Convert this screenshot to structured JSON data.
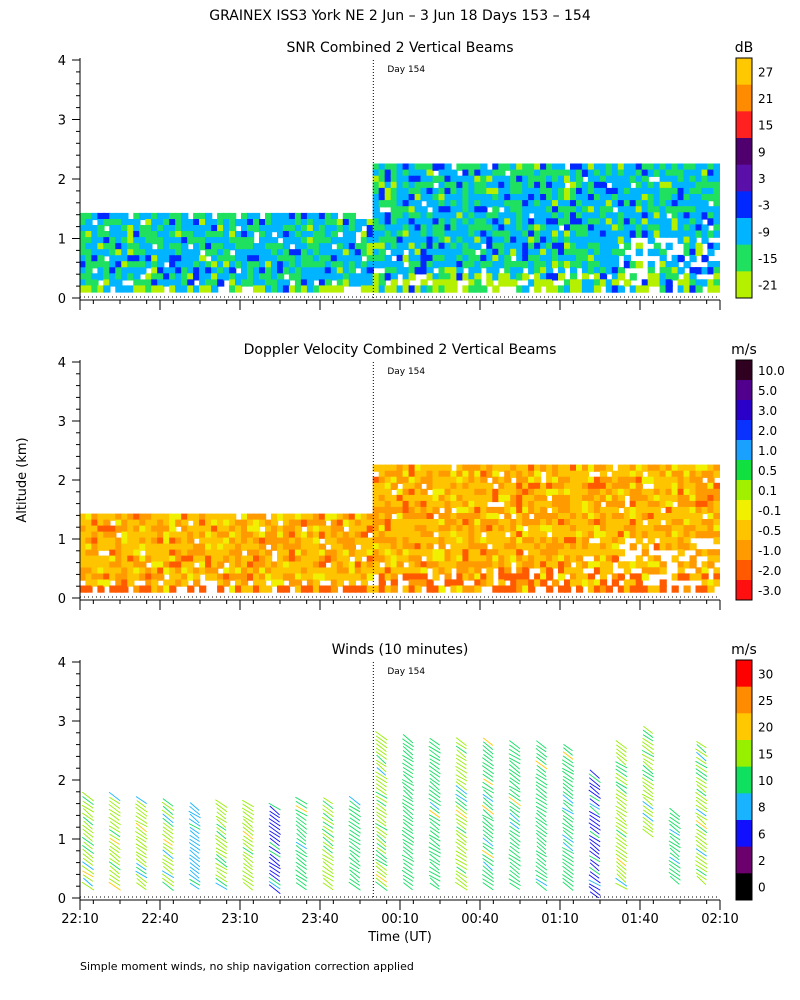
{
  "figure": {
    "title": "GRAINEX ISS3 York NE   2 Jun –  3 Jun 18 Days 153 – 154",
    "y_axis_label": "Altitude (km)",
    "x_axis_label": "Time (UT)",
    "footnote": "Simple moment winds, no ship navigation correction applied",
    "day_marker": "Day 154"
  },
  "chart_data": [
    {
      "type": "heatmap",
      "title": "SNR Combined 2 Vertical Beams",
      "xlabel": "Time (UT)",
      "ylabel": "Altitude (km)",
      "x_ticks": [
        "22:10",
        "22:40",
        "23:10",
        "23:40",
        "00:10",
        "00:40",
        "01:10",
        "01:40",
        "02:10"
      ],
      "y_ticks": [
        "0",
        "1",
        "2",
        "3",
        "4"
      ],
      "ylim": [
        0,
        4
      ],
      "day_boundary": "00:00",
      "colorbar": {
        "unit": "dB",
        "labels": [
          "27",
          "21",
          "15",
          "9",
          "3",
          "-3",
          "-9",
          "-15",
          "-21"
        ],
        "colors": [
          "#ffc800",
          "#ff8c00",
          "#ff2020",
          "#50006e",
          "#5a10a8",
          "#0028ff",
          "#00b4ff",
          "#20e060",
          "#b4f000"
        ]
      },
      "data_extent": [
        {
          "start": "22:10",
          "end": "00:00",
          "top_km": 1.42
        },
        {
          "start": "00:00",
          "end": "02:10",
          "top_km": 2.25
        }
      ],
      "dominant_classes": [
        "-9",
        "-15"
      ]
    },
    {
      "type": "heatmap",
      "title": "Doppler Velocity Combined 2 Vertical Beams",
      "xlabel": "Time (UT)",
      "ylabel": "Altitude (km)",
      "x_ticks": [
        "22:10",
        "22:40",
        "23:10",
        "23:40",
        "00:10",
        "00:40",
        "01:10",
        "01:40",
        "02:10"
      ],
      "y_ticks": [
        "0",
        "1",
        "2",
        "3",
        "4"
      ],
      "ylim": [
        0,
        4
      ],
      "day_boundary": "00:00",
      "colorbar": {
        "unit": "m/s",
        "labels": [
          "10.0",
          "5.0",
          "3.0",
          "2.0",
          "1.0",
          "0.5",
          "0.1",
          "-0.1",
          "-0.5",
          "-1.0",
          "-2.0",
          "-3.0"
        ],
        "colors": [
          "#300020",
          "#50008c",
          "#2a00c8",
          "#0a32ff",
          "#1aa0ff",
          "#10e040",
          "#a0f000",
          "#f0f000",
          "#ffc400",
          "#ff9a00",
          "#ff5a00",
          "#ff1010"
        ]
      },
      "data_extent": [
        {
          "start": "22:10",
          "end": "00:00",
          "top_km": 1.42
        },
        {
          "start": "00:00",
          "end": "02:10",
          "top_km": 2.25
        }
      ],
      "dominant_classes": [
        "-0.5",
        "-1.0"
      ]
    },
    {
      "type": "barbs",
      "title": "Winds (10 minutes)",
      "xlabel": "Time (UT)",
      "ylabel": "Altitude (km)",
      "x_ticks": [
        "22:10",
        "22:40",
        "23:10",
        "23:40",
        "00:10",
        "00:40",
        "01:10",
        "01:40",
        "02:10"
      ],
      "y_ticks": [
        "0",
        "1",
        "2",
        "3",
        "4"
      ],
      "ylim": [
        0,
        4
      ],
      "day_boundary": "00:00",
      "colorbar": {
        "unit": "m/s",
        "labels": [
          "30",
          "25",
          "20",
          "15",
          "10",
          "8",
          "6",
          "2",
          "0"
        ],
        "colors": [
          "#ff0000",
          "#ff8c00",
          "#ffc800",
          "#96f000",
          "#10e060",
          "#18b4ff",
          "#1010ff",
          "#6c006c",
          "#000000"
        ]
      },
      "profiles": [
        {
          "time": "22:13",
          "bottom_km": 0.2,
          "top_km": 1.72,
          "dominant_speed_class": "15"
        },
        {
          "time": "22:23",
          "bottom_km": 0.2,
          "top_km": 1.72,
          "dominant_speed_class": "15"
        },
        {
          "time": "22:33",
          "bottom_km": 0.2,
          "top_km": 1.66,
          "dominant_speed_class": "15"
        },
        {
          "time": "22:43",
          "bottom_km": 0.2,
          "top_km": 1.62,
          "dominant_speed_class": "15"
        },
        {
          "time": "22:53",
          "bottom_km": 0.2,
          "top_km": 1.55,
          "dominant_speed_class": "8"
        },
        {
          "time": "23:03",
          "bottom_km": 0.2,
          "top_km": 1.6,
          "dominant_speed_class": "15"
        },
        {
          "time": "23:13",
          "bottom_km": 0.2,
          "top_km": 1.6,
          "dominant_speed_class": "15"
        },
        {
          "time": "23:23",
          "bottom_km": 0.15,
          "top_km": 1.55,
          "dominant_speed_class": "6"
        },
        {
          "time": "23:33",
          "bottom_km": 0.2,
          "top_km": 1.65,
          "dominant_speed_class": "10"
        },
        {
          "time": "23:43",
          "bottom_km": 0.2,
          "top_km": 1.65,
          "dominant_speed_class": "15"
        },
        {
          "time": "23:53",
          "bottom_km": 0.2,
          "top_km": 1.65,
          "dominant_speed_class": "10"
        },
        {
          "time": "00:03",
          "bottom_km": 0.2,
          "top_km": 2.75,
          "dominant_speed_class": "15"
        },
        {
          "time": "00:13",
          "bottom_km": 0.2,
          "top_km": 2.7,
          "dominant_speed_class": "10"
        },
        {
          "time": "00:23",
          "bottom_km": 0.2,
          "top_km": 2.65,
          "dominant_speed_class": "10"
        },
        {
          "time": "00:33",
          "bottom_km": 0.2,
          "top_km": 2.65,
          "dominant_speed_class": "15"
        },
        {
          "time": "00:43",
          "bottom_km": 0.2,
          "top_km": 2.65,
          "dominant_speed_class": "10"
        },
        {
          "time": "00:53",
          "bottom_km": 0.2,
          "top_km": 2.6,
          "dominant_speed_class": "10"
        },
        {
          "time": "01:03",
          "bottom_km": 0.2,
          "top_km": 2.6,
          "dominant_speed_class": "10"
        },
        {
          "time": "01:13",
          "bottom_km": 0.2,
          "top_km": 2.55,
          "dominant_speed_class": "10"
        },
        {
          "time": "01:23",
          "bottom_km": 0.05,
          "top_km": 2.1,
          "dominant_speed_class": "6"
        },
        {
          "time": "01:33",
          "bottom_km": 0.2,
          "top_km": 2.6,
          "dominant_speed_class": "15"
        },
        {
          "time": "01:43",
          "bottom_km": 1.1,
          "top_km": 2.85,
          "dominant_speed_class": "15"
        },
        {
          "time": "01:53",
          "bottom_km": 0.3,
          "top_km": 1.45,
          "dominant_speed_class": "10"
        },
        {
          "time": "02:03",
          "bottom_km": 0.3,
          "top_km": 2.6,
          "dominant_speed_class": "15"
        }
      ]
    }
  ]
}
